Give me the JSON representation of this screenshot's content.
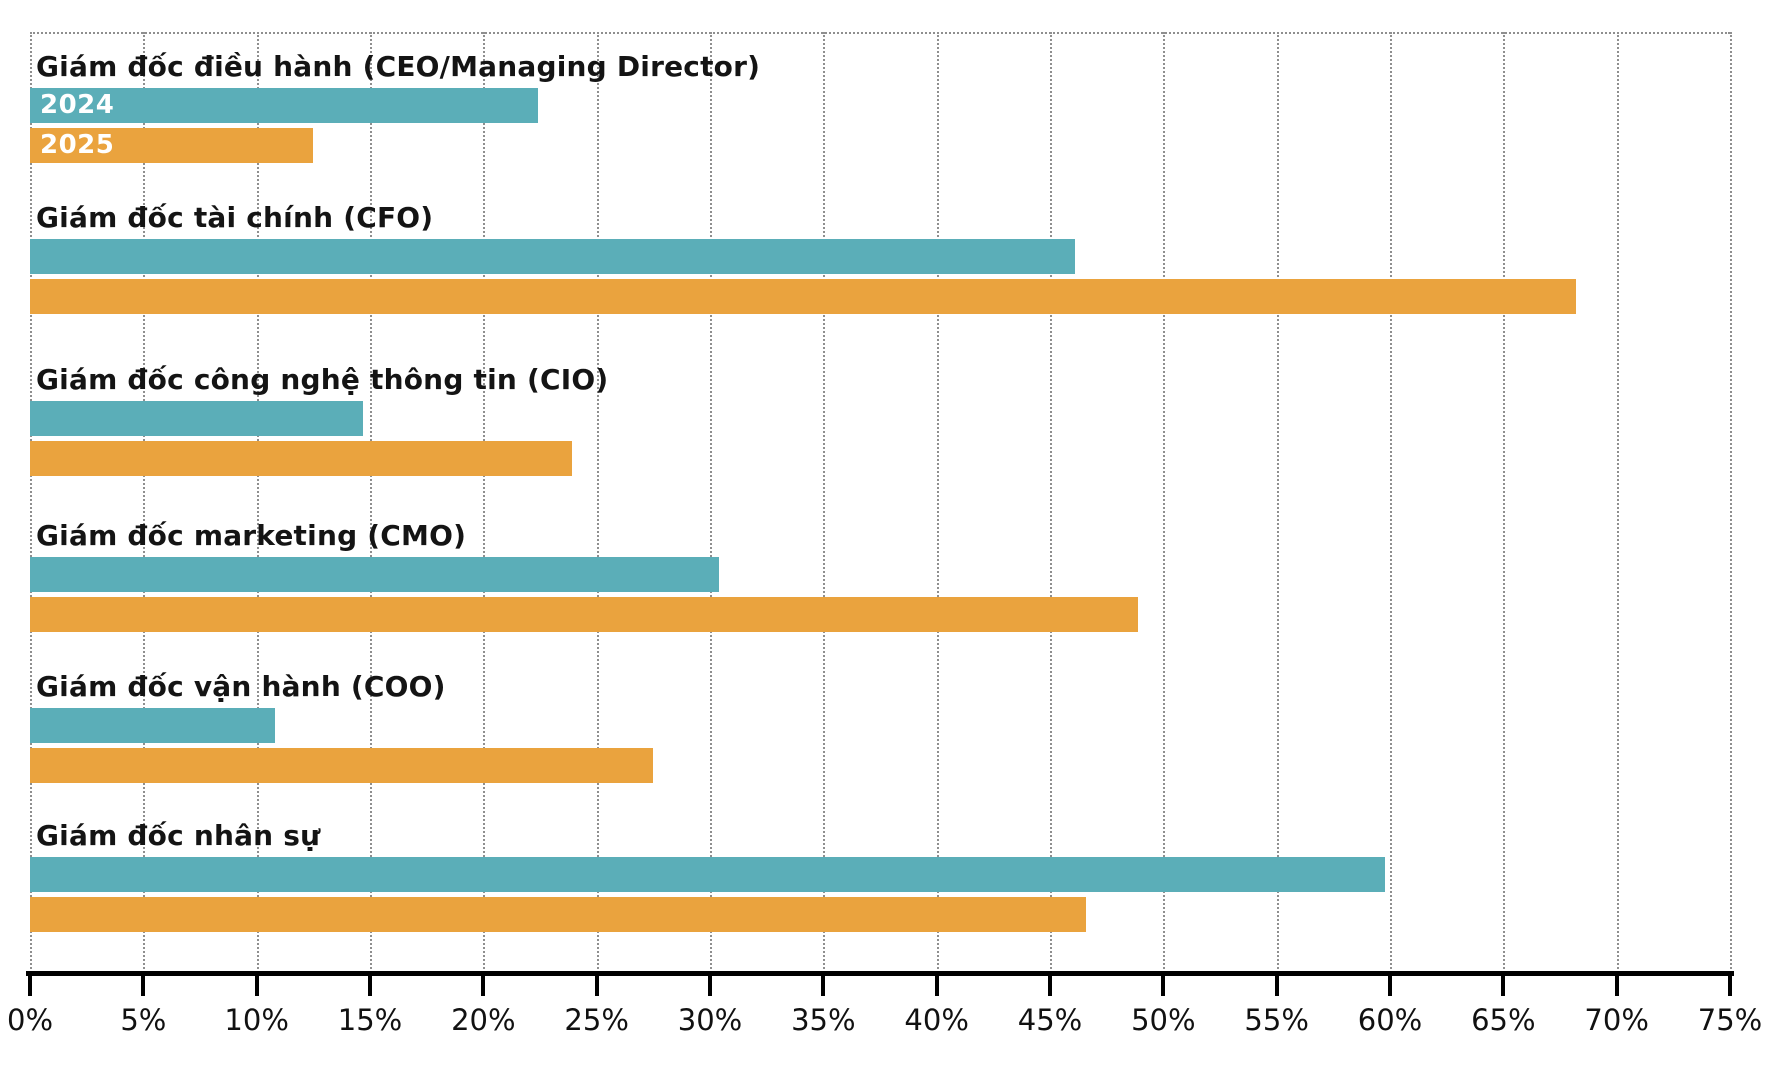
{
  "chart_data": {
    "type": "bar",
    "orientation": "horizontal",
    "title": "",
    "categories": [
      "Giám đốc điều hành (CEO/Managing Director)",
      "Giám đốc tài chính (CFO)",
      "Giám đốc công nghệ thông tin (CIO)",
      "Giám đốc marketing (CMO)",
      "Giám đốc vận hành (COO)",
      "Giám đốc nhân sự"
    ],
    "series": [
      {
        "name": "2024",
        "color": "#5BAEB8",
        "values": [
          22.4,
          46.1,
          14.7,
          30.4,
          10.8,
          59.8
        ]
      },
      {
        "name": "2025",
        "color": "#EAA33E",
        "values": [
          12.5,
          68.2,
          23.9,
          48.9,
          27.5,
          46.6
        ]
      }
    ],
    "series_labels_on_first_category_only": true,
    "value_suffix": "%",
    "xlabel": "",
    "ylabel": "",
    "xlim": [
      0,
      75
    ],
    "x_tick_step": 5,
    "x_tick_labels": [
      "0%",
      "5%",
      "10%",
      "15%",
      "20%",
      "25%",
      "30%",
      "35%",
      "40%",
      "45%",
      "50%",
      "55%",
      "60%",
      "65%",
      "70%",
      "75%"
    ],
    "grid": "vertical dotted gridlines, top dotted border, solid black bottom axis with tick marks",
    "legend_position": "inline labels inside first category bars",
    "colors": {
      "grid": "#8f8f8f",
      "axis": "#000000",
      "category_text": "#141414",
      "tick_text": "#111111",
      "bar_inner_text": "#ffffff",
      "background": "#ffffff"
    }
  }
}
